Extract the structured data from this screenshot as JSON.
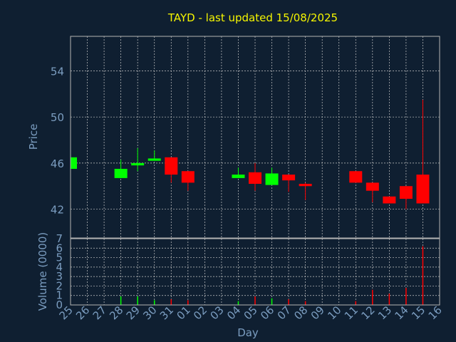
{
  "colors": {
    "background": "#0f1f31",
    "title": "#f5f500",
    "axis_text": "#7b9dc0",
    "grid": "#c8c8c8",
    "frame": "#b4b4b4",
    "up": "#00ff00",
    "down": "#ff0000"
  },
  "chart_data": {
    "type": "candlestick",
    "title": "TAYD - last updated 15/08/2025",
    "xlabel": "Day",
    "ylabel": "Price",
    "volume_label": "Volume (0000)",
    "grid": true,
    "price_ylim": [
      39.5,
      57
    ],
    "price_ticks": [
      "42",
      "46",
      "50",
      "54"
    ],
    "volume_ylim": [
      0,
      7
    ],
    "volume_ticks": [
      "0",
      "1",
      "2",
      "3",
      "4",
      "5",
      "6",
      "7"
    ],
    "categories": [
      "25",
      "26",
      "27",
      "28",
      "29",
      "30",
      "31",
      "01",
      "02",
      "03",
      "04",
      "05",
      "06",
      "07",
      "08",
      "09",
      "10",
      "11",
      "12",
      "13",
      "14",
      "15",
      "16"
    ],
    "candles": [
      {
        "day": "25",
        "open": 45.5,
        "high": 46.5,
        "low": 45.5,
        "close": 46.5
      },
      {
        "day": "28",
        "open": 44.7,
        "high": 46.3,
        "low": 44.7,
        "close": 45.5
      },
      {
        "day": "29",
        "open": 45.8,
        "high": 47.3,
        "low": 45.3,
        "close": 46.0
      },
      {
        "day": "30",
        "open": 46.2,
        "high": 47.1,
        "low": 46.2,
        "close": 46.4
      },
      {
        "day": "31",
        "open": 46.5,
        "high": 46.5,
        "low": 44.3,
        "close": 45.0
      },
      {
        "day": "01",
        "open": 45.3,
        "high": 45.3,
        "low": 43.6,
        "close": 44.3
      },
      {
        "day": "04",
        "open": 44.7,
        "high": 45.6,
        "low": 44.7,
        "close": 45.0
      },
      {
        "day": "05",
        "open": 45.2,
        "high": 46.0,
        "low": 43.6,
        "close": 44.2
      },
      {
        "day": "06",
        "open": 44.1,
        "high": 45.6,
        "low": 44.1,
        "close": 45.1
      },
      {
        "day": "07",
        "open": 45.0,
        "high": 45.0,
        "low": 43.5,
        "close": 44.5
      },
      {
        "day": "08",
        "open": 44.2,
        "high": 44.3,
        "low": 42.8,
        "close": 44.0
      },
      {
        "day": "11",
        "open": 45.3,
        "high": 45.3,
        "low": 44.3,
        "close": 44.3
      },
      {
        "day": "12",
        "open": 44.3,
        "high": 44.3,
        "low": 42.6,
        "close": 43.6
      },
      {
        "day": "13",
        "open": 43.1,
        "high": 43.1,
        "low": 42.5,
        "close": 42.5
      },
      {
        "day": "14",
        "open": 44.0,
        "high": 44.0,
        "low": 42.0,
        "close": 42.9
      },
      {
        "day": "15",
        "open": 45.0,
        "high": 51.5,
        "low": 42.5,
        "close": 42.5
      }
    ],
    "volume": [
      {
        "day": "25",
        "value": 0
      },
      {
        "day": "28",
        "value": 0.9
      },
      {
        "day": "29",
        "value": 0.9
      },
      {
        "day": "30",
        "value": 0.5
      },
      {
        "day": "31",
        "value": 0.6
      },
      {
        "day": "01",
        "value": 0.5
      },
      {
        "day": "04",
        "value": 0.4
      },
      {
        "day": "05",
        "value": 0.9
      },
      {
        "day": "06",
        "value": 0.7
      },
      {
        "day": "07",
        "value": 0.6
      },
      {
        "day": "08",
        "value": 0.4
      },
      {
        "day": "11",
        "value": 0.4
      },
      {
        "day": "12",
        "value": 1.6
      },
      {
        "day": "13",
        "value": 1.2
      },
      {
        "day": "14",
        "value": 1.8
      },
      {
        "day": "15",
        "value": 6.2
      }
    ]
  }
}
